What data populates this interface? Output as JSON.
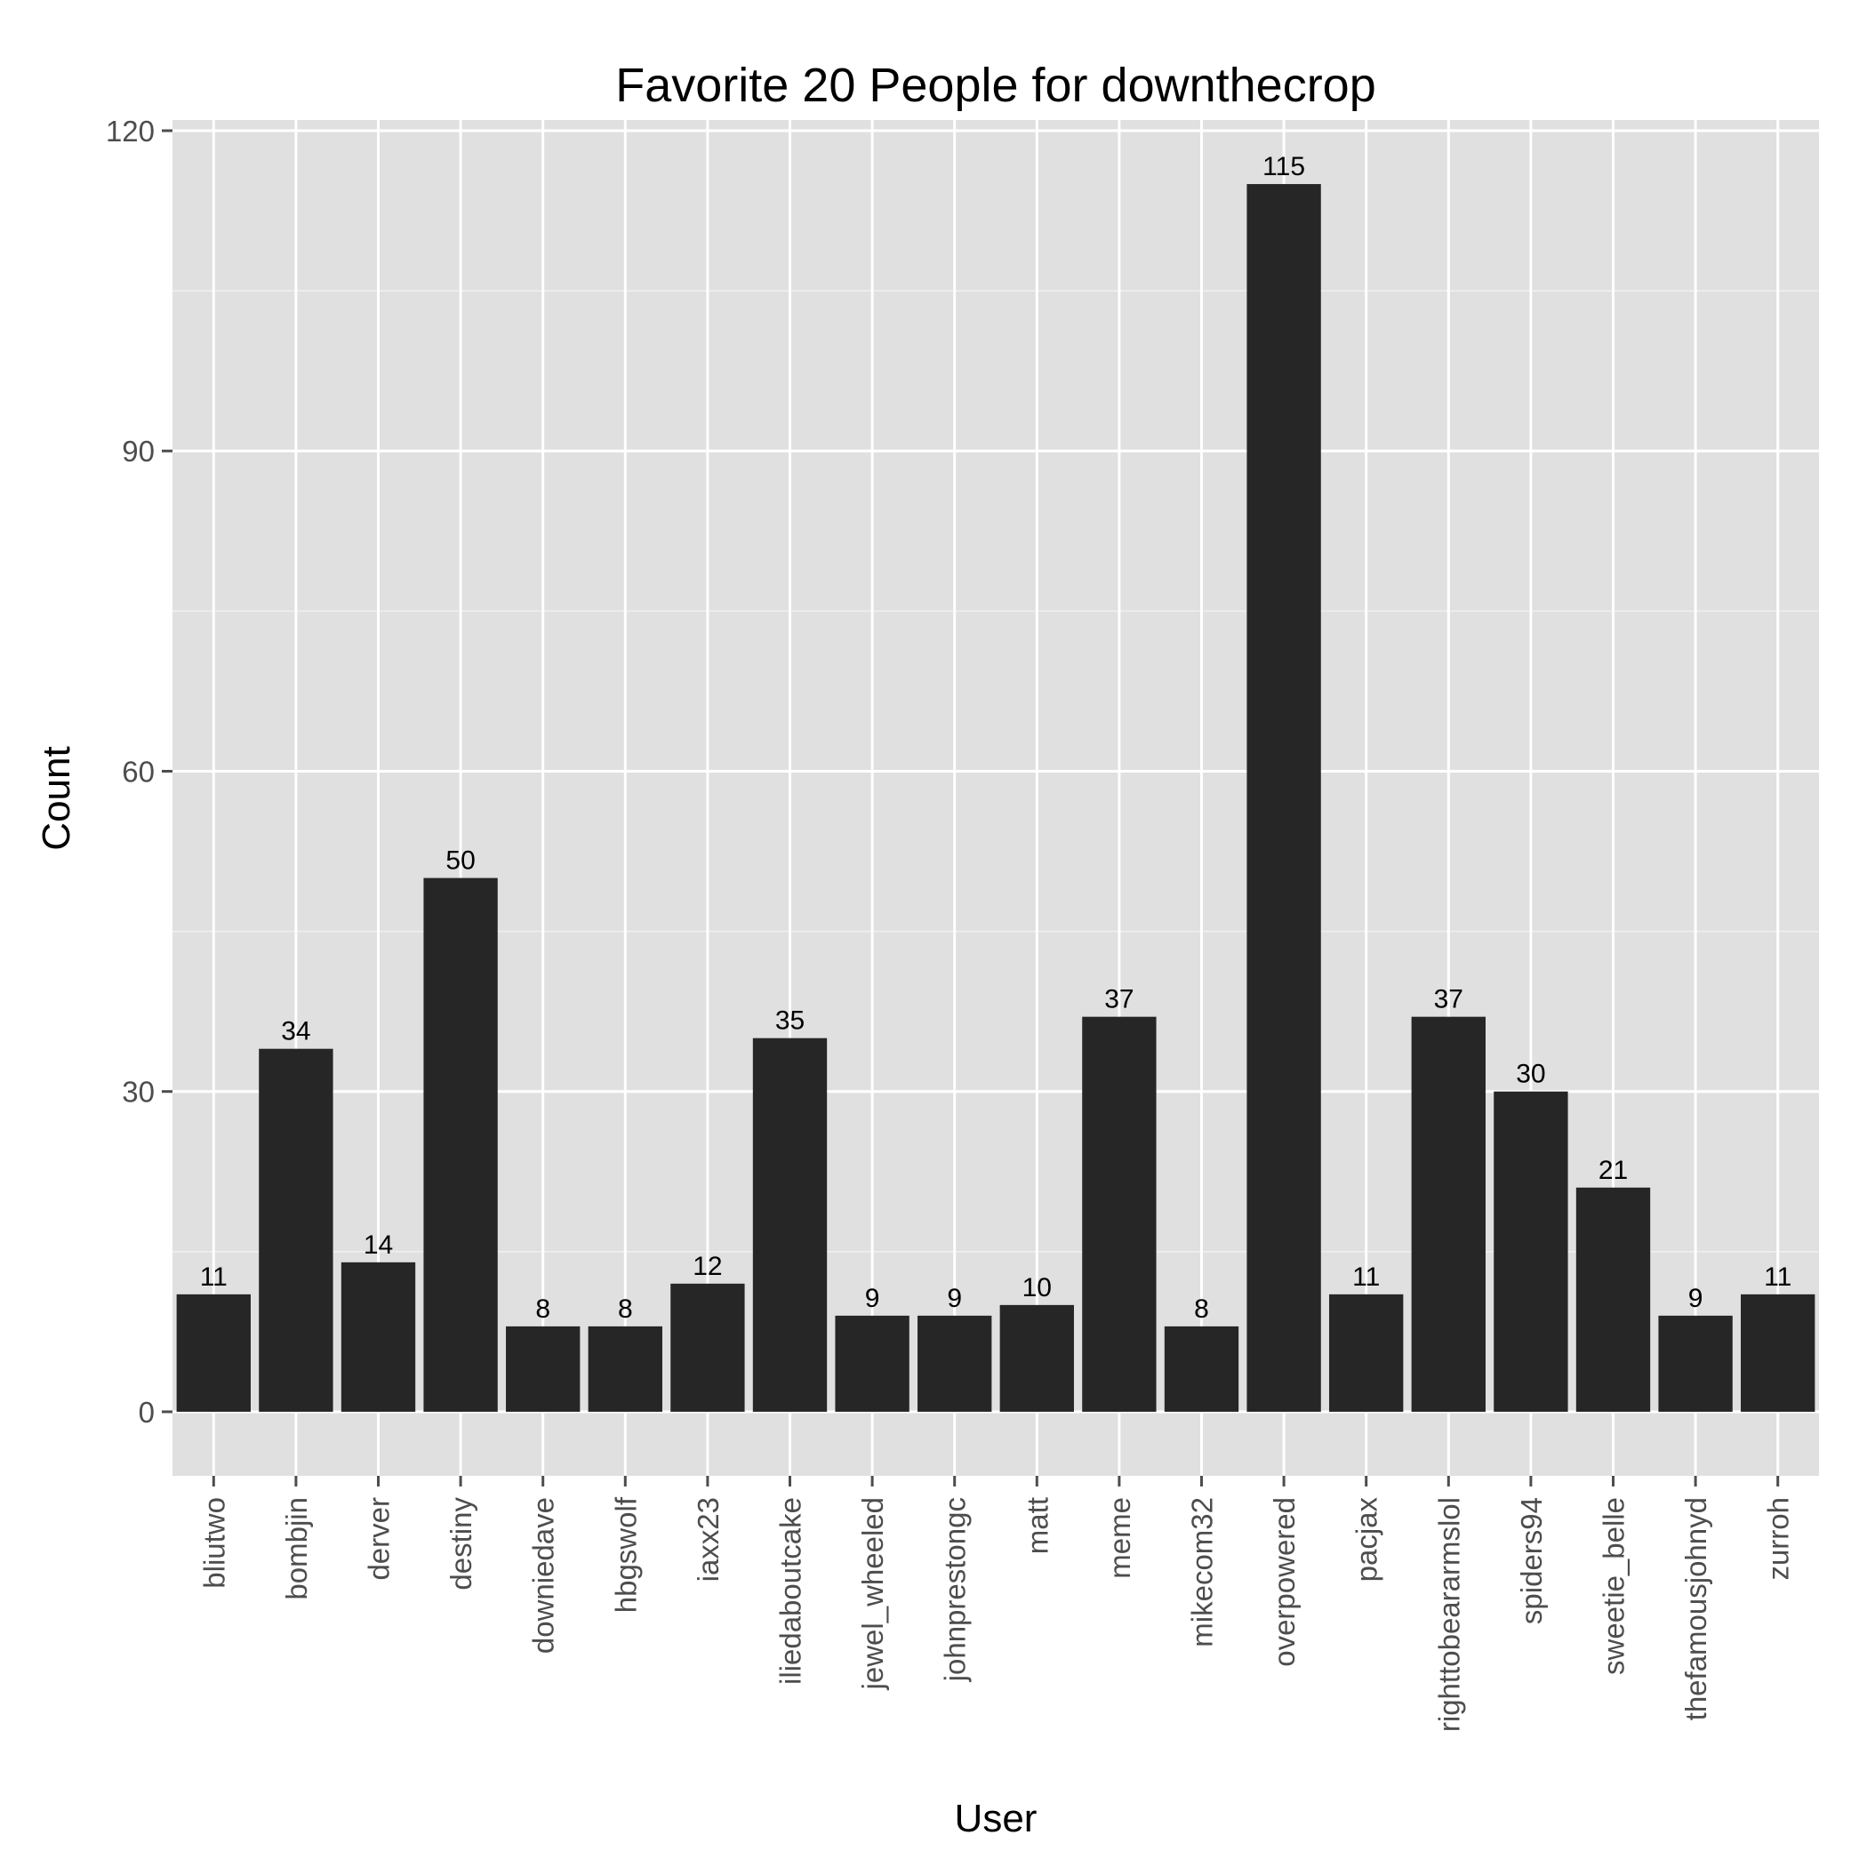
{
  "chart_data": {
    "type": "bar",
    "title": "Favorite 20 People for downthecrop",
    "xlabel": "User",
    "ylabel": "Count",
    "ylim": [
      -6,
      121
    ],
    "yticks": [
      0,
      30,
      60,
      90,
      120
    ],
    "grid": true,
    "categories": [
      "bliutwo",
      "bombjin",
      "derver",
      "destiny",
      "downiedave",
      "hbgswolf",
      "iaxx23",
      "iliedaboutcake",
      "jewel_wheeled",
      "johnprestongc",
      "matt",
      "meme",
      "mikecom32",
      "overpowered",
      "pacjax",
      "righttobeararmslol",
      "spiders94",
      "sweetie_belle",
      "thefamousjohnyd",
      "zurroh"
    ],
    "values": [
      11,
      34,
      14,
      50,
      8,
      8,
      12,
      35,
      9,
      9,
      10,
      37,
      8,
      115,
      11,
      37,
      30,
      21,
      9,
      11
    ],
    "colors": {
      "panel": "#e0e0e0",
      "grid_major": "#ffffff",
      "grid_minor": "#f0f0f0",
      "bar": "#262626",
      "tick": "#4d4d4d"
    }
  }
}
